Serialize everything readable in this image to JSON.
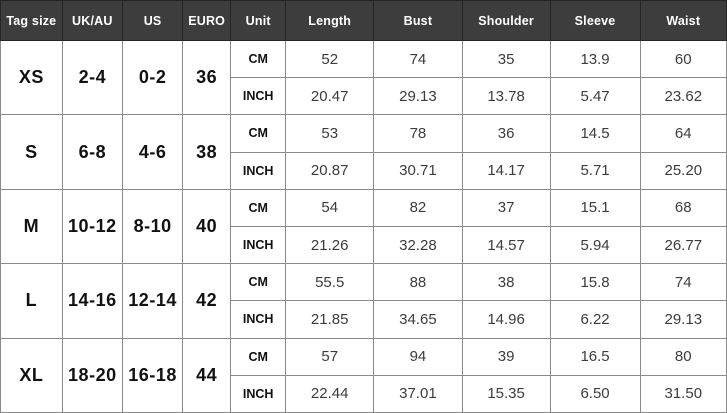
{
  "colors": {
    "header_bg": "#3d3d3d",
    "header_text": "#ffffff",
    "header_border": "#262626",
    "body_border": "#8a8a8a",
    "body_bg": "#ffffff",
    "size_text": "#111111",
    "value_text": "#3c3c3c"
  },
  "chart_data": {
    "type": "table",
    "columns": [
      "Tag size",
      "UK/AU",
      "US",
      "EURO",
      "Unit",
      "Length",
      "Bust",
      "Shoulder",
      "Sleeve",
      "Waist"
    ],
    "measurement_columns": [
      "Length",
      "Bust",
      "Shoulder",
      "Sleeve",
      "Waist"
    ],
    "rows": [
      {
        "tag_size": "XS",
        "uk_au": "2-4",
        "us": "0-2",
        "euro": "36",
        "units": [
          {
            "label": "CM",
            "values": [
              "52",
              "74",
              "35",
              "13.9",
              "60"
            ]
          },
          {
            "label": "INCH",
            "values": [
              "20.47",
              "29.13",
              "13.78",
              "5.47",
              "23.62"
            ]
          }
        ]
      },
      {
        "tag_size": "S",
        "uk_au": "6-8",
        "us": "4-6",
        "euro": "38",
        "units": [
          {
            "label": "CM",
            "values": [
              "53",
              "78",
              "36",
              "14.5",
              "64"
            ]
          },
          {
            "label": "INCH",
            "values": [
              "20.87",
              "30.71",
              "14.17",
              "5.71",
              "25.20"
            ]
          }
        ]
      },
      {
        "tag_size": "M",
        "uk_au": "10-12",
        "us": "8-10",
        "euro": "40",
        "units": [
          {
            "label": "CM",
            "values": [
              "54",
              "82",
              "37",
              "15.1",
              "68"
            ]
          },
          {
            "label": "INCH",
            "values": [
              "21.26",
              "32.28",
              "14.57",
              "5.94",
              "26.77"
            ]
          }
        ]
      },
      {
        "tag_size": "L",
        "uk_au": "14-16",
        "us": "12-14",
        "euro": "42",
        "units": [
          {
            "label": "CM",
            "values": [
              "55.5",
              "88",
              "38",
              "15.8",
              "74"
            ]
          },
          {
            "label": "INCH",
            "values": [
              "21.85",
              "34.65",
              "14.96",
              "6.22",
              "29.13"
            ]
          }
        ]
      },
      {
        "tag_size": "XL",
        "uk_au": "18-20",
        "us": "16-18",
        "euro": "44",
        "units": [
          {
            "label": "CM",
            "values": [
              "57",
              "94",
              "39",
              "16.5",
              "80"
            ]
          },
          {
            "label": "INCH",
            "values": [
              "22.44",
              "37.01",
              "15.35",
              "6.50",
              "31.50"
            ]
          }
        ]
      }
    ]
  }
}
